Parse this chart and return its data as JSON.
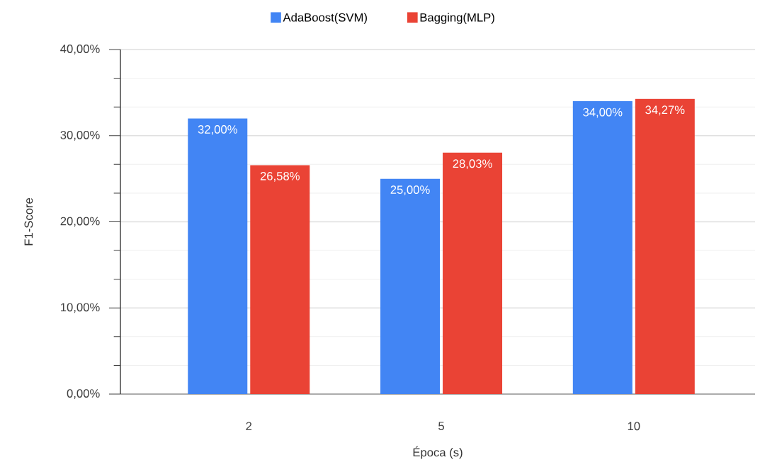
{
  "chart_data": {
    "type": "bar",
    "xlabel": "Época (s)",
    "ylabel": "F1-Score",
    "categories": [
      "2",
      "5",
      "10"
    ],
    "series": [
      {
        "name": "AdaBoost(SVM)",
        "color": "#4285f4",
        "values": [
          32.0,
          25.0,
          34.0
        ],
        "value_labels": [
          "32,00%",
          "25,00%",
          "34,00%"
        ]
      },
      {
        "name": "Bagging(MLP)",
        "color": "#ea4335",
        "values": [
          26.58,
          28.03,
          34.27
        ],
        "value_labels": [
          "26,58%",
          "28,03%",
          "34,27%"
        ]
      }
    ],
    "ylim": [
      0,
      40
    ],
    "yticks": [
      {
        "value": 0,
        "label": "0,00%"
      },
      {
        "value": 10,
        "label": "10,00%"
      },
      {
        "value": 20,
        "label": "20,00%"
      },
      {
        "value": 30,
        "label": "30,00%"
      },
      {
        "value": 40,
        "label": "40,00%"
      }
    ],
    "grid": "y",
    "legend": "top"
  }
}
